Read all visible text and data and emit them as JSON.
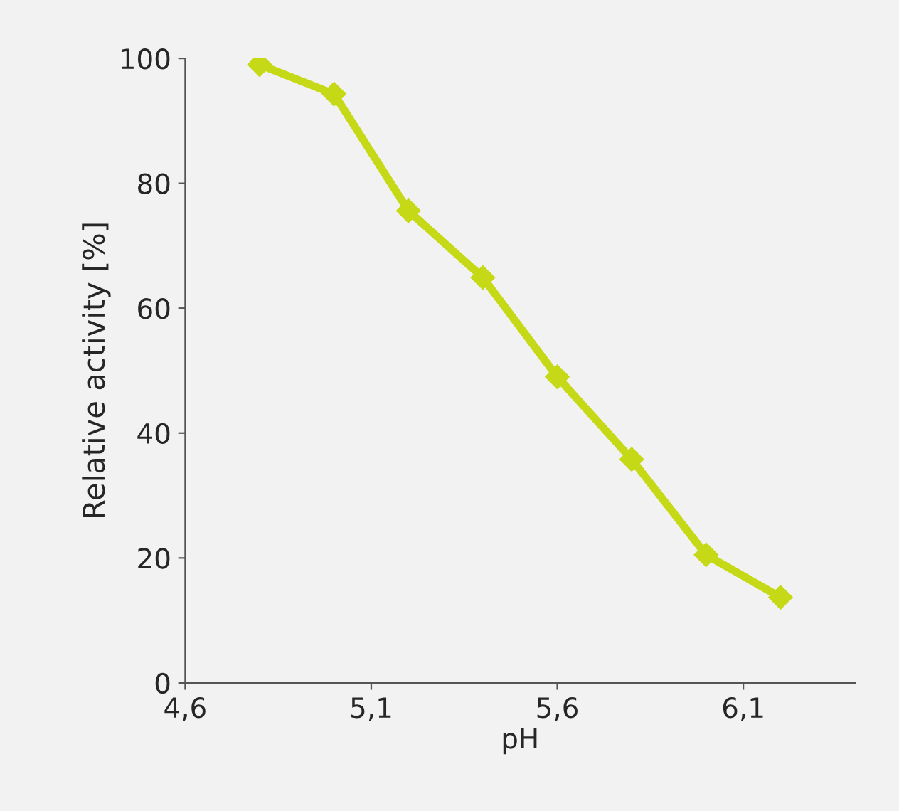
{
  "chart_data": {
    "type": "line",
    "xlabel": "pH",
    "ylabel": "Relative activity [%]",
    "x": [
      4.8,
      5.0,
      5.2,
      5.4,
      5.6,
      5.8,
      6.0,
      6.2
    ],
    "series": [
      {
        "color": "#c6d916",
        "values": [
          99,
          94.3,
          75.6,
          64.9,
          49,
          35.8,
          20.5,
          13.7
        ]
      }
    ],
    "xlim": [
      4.6,
      6.4
    ],
    "xticks": [
      {
        "value": 4.6,
        "label": "4,6"
      },
      {
        "value": 5.1,
        "label": "5,1"
      },
      {
        "value": 5.6,
        "label": "5,6"
      },
      {
        "value": 6.1,
        "label": "6,1"
      }
    ],
    "ylim": [
      0,
      100
    ],
    "yticks": [
      0,
      20,
      40,
      60,
      80,
      100
    ],
    "grid": false,
    "marker": "diamond",
    "line_style": "solid"
  }
}
